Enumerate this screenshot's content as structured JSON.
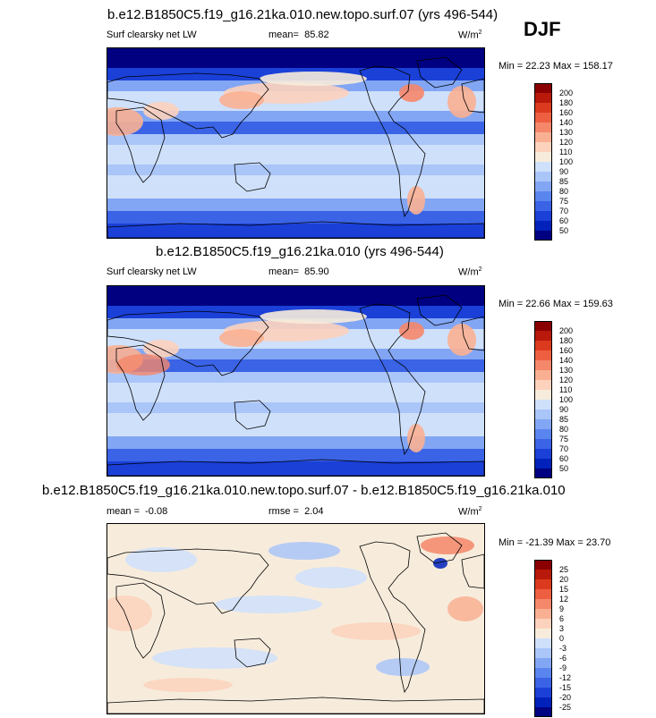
{
  "season": "DJF",
  "colors": {
    "abs_scale": [
      "#000080",
      "#0022bb",
      "#1a40d8",
      "#3a63e6",
      "#5a85ef",
      "#82a6f4",
      "#aac5f8",
      "#cfe0fb",
      "#f7ecdc",
      "#fcd2bc",
      "#f9b092",
      "#f5876a",
      "#ee5f42",
      "#dc3a1e",
      "#b8190a",
      "#8a0000"
    ],
    "diff_scale": [
      "#000080",
      "#0022bb",
      "#1a40d8",
      "#3a63e6",
      "#5a85ef",
      "#82a6f4",
      "#aac5f8",
      "#cfe0fb",
      "#f7ecdc",
      "#fcd2bc",
      "#f9b092",
      "#f5876a",
      "#ee5f42",
      "#dc3a1e",
      "#b8190a",
      "#8a0000"
    ]
  },
  "panels": [
    {
      "title": "b.e12.B1850C5.f19_g16.21ka.010.new.topo.surf.07 (yrs 496-544)",
      "variable": "Surf clearsky net LW",
      "mean_label": "mean=",
      "mean_value": "85.82",
      "units": "W/m",
      "units_exp": "2",
      "minmax": "Min =  22.23 Max = 158.17",
      "colorbar_labels": [
        "200",
        "180",
        "160",
        "140",
        "130",
        "120",
        "110",
        "100",
        "90",
        "85",
        "80",
        "75",
        "70",
        "60",
        "50"
      ]
    },
    {
      "title": "b.e12.B1850C5.f19_g16.21ka.010 (yrs 496-544)",
      "variable": "Surf clearsky net LW",
      "mean_label": "mean=",
      "mean_value": "85.90",
      "units": "W/m",
      "units_exp": "2",
      "minmax": "Min =  22.66 Max = 159.63",
      "colorbar_labels": [
        "200",
        "180",
        "160",
        "140",
        "130",
        "120",
        "110",
        "100",
        "90",
        "85",
        "80",
        "75",
        "70",
        "60",
        "50"
      ]
    },
    {
      "title": "b.e12.B1850C5.f19_g16.21ka.010.new.topo.surf.07 - b.e12.B1850C5.f19_g16.21ka.010",
      "variable": "",
      "mean_label": "mean =",
      "mean_value": "-0.08",
      "rmse_label": "rmse =",
      "rmse_value": "2.04",
      "units": "W/m",
      "units_exp": "2",
      "minmax": "Min = -21.39 Max =  23.70",
      "colorbar_labels": [
        "25",
        "20",
        "15",
        "12",
        "9",
        "6",
        "3",
        "0",
        "-3",
        "-6",
        "-9",
        "-12",
        "-15",
        "-20",
        "-25"
      ]
    }
  ]
}
